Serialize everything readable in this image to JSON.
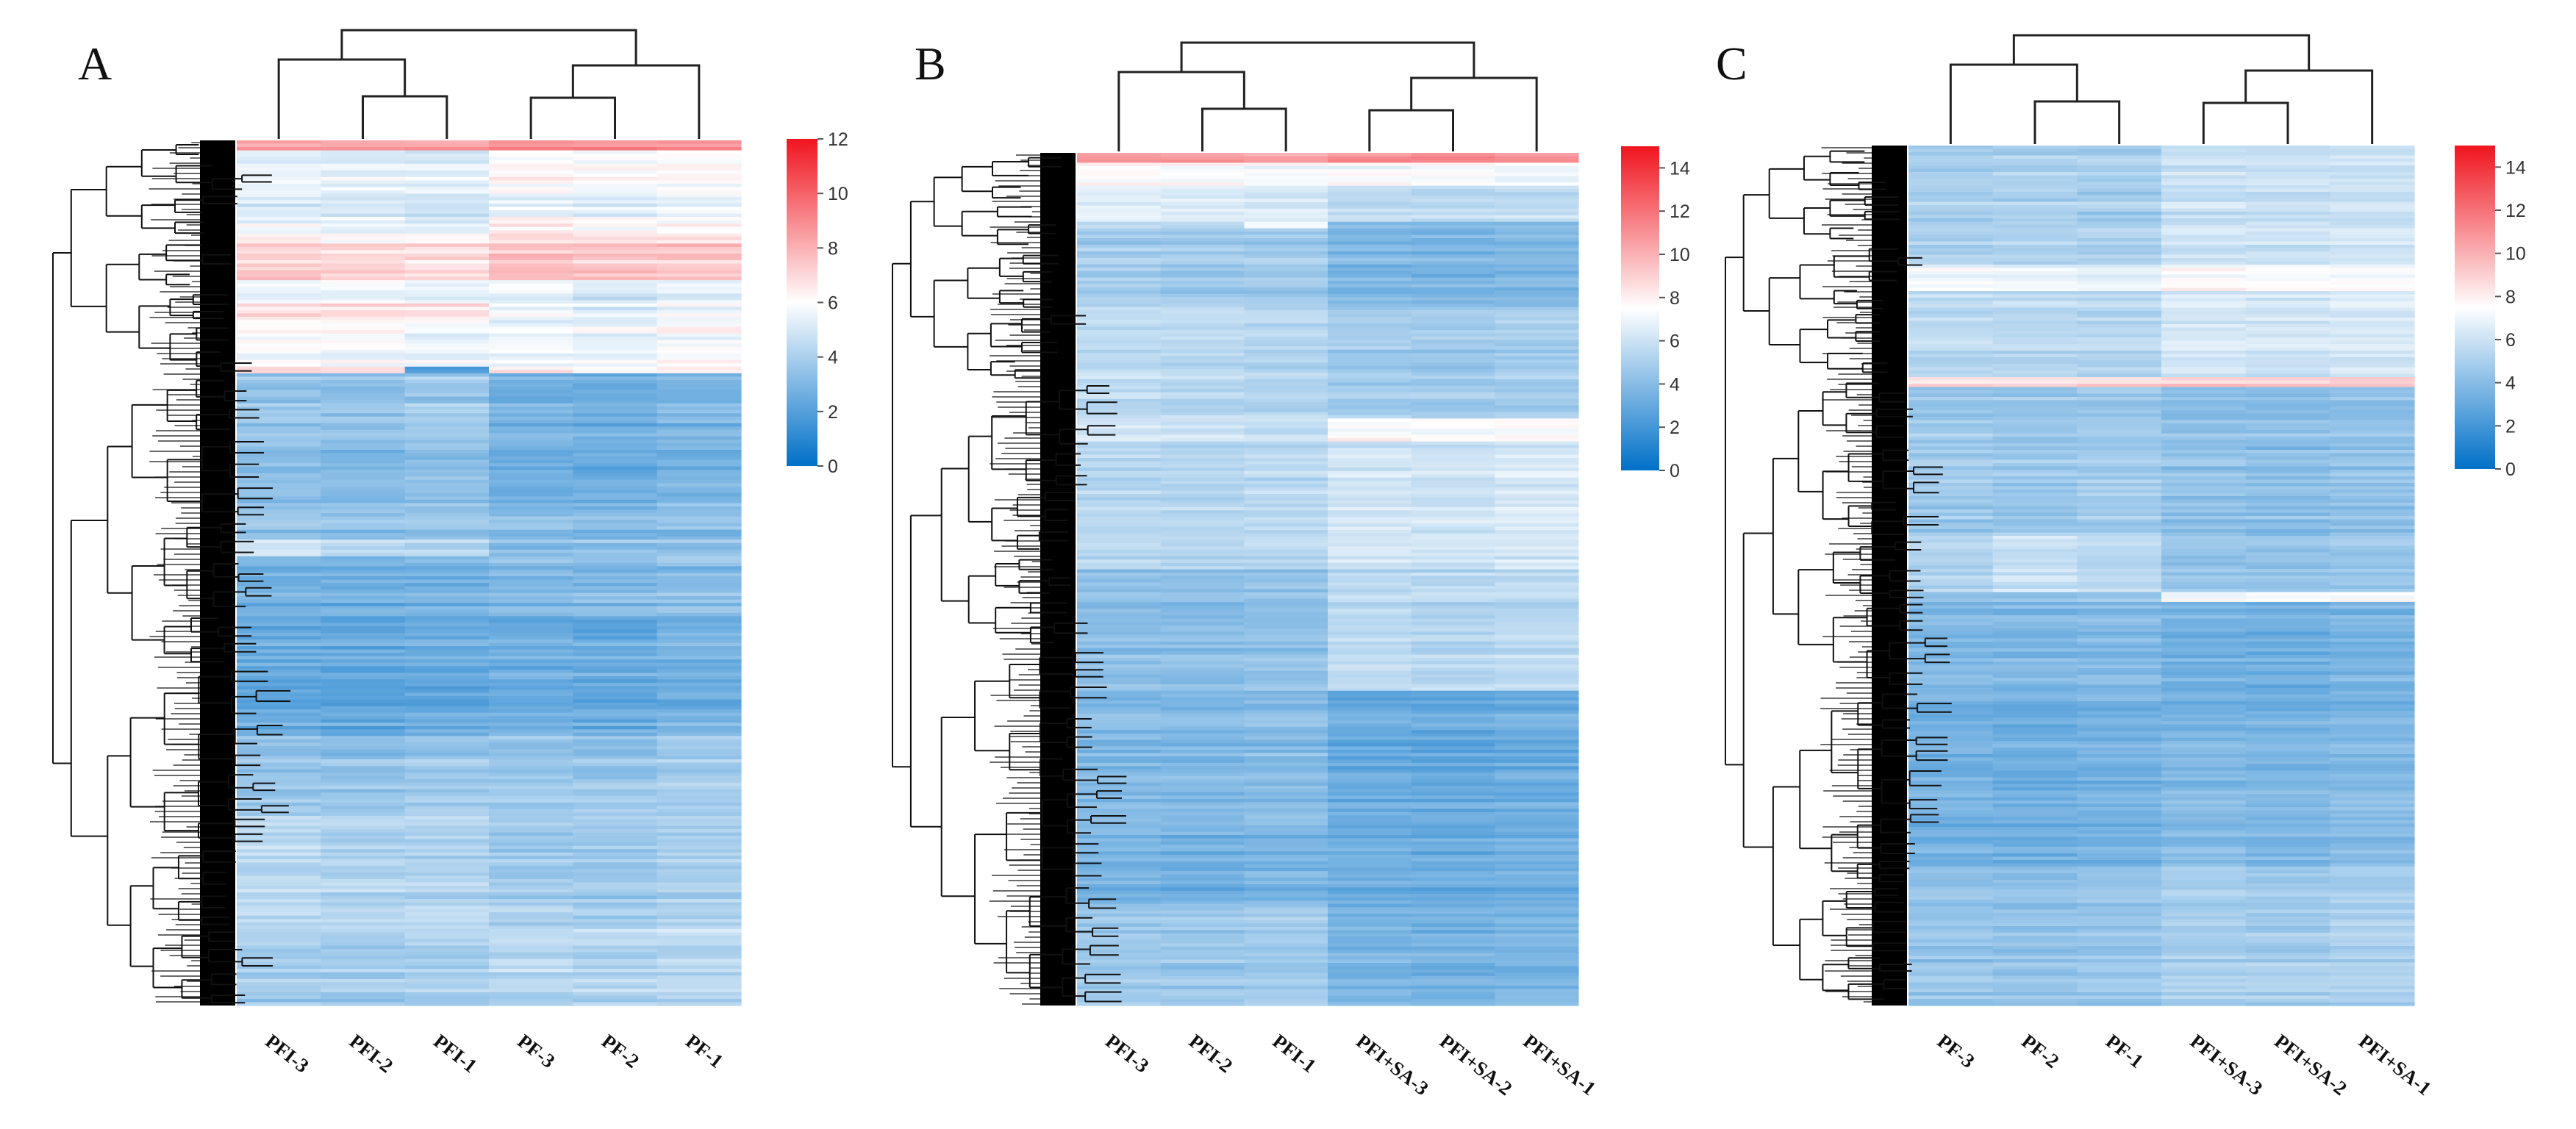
{
  "colors": {
    "low": "#0070c8",
    "mid": "#ffffff",
    "high": "#f0141e"
  },
  "chart_data": [
    {
      "type": "heatmap",
      "panel": "A",
      "title": "",
      "columns": [
        "PFI-3",
        "PFI-2",
        "PFI-1",
        "PF-3",
        "PF-2",
        "PF-1"
      ],
      "colorbar": {
        "range": [
          0,
          12
        ],
        "ticks": [
          0,
          2,
          4,
          6,
          8,
          10,
          12
        ]
      },
      "row_clustering": true,
      "column_clustering": true,
      "row_profile": [
        {
          "start": 0.0,
          "end": 0.01,
          "values": [
            8.5,
            8.5,
            8.5,
            9,
            9,
            9
          ]
        },
        {
          "start": 0.01,
          "end": 0.05,
          "values": [
            5.6,
            5.5,
            5.4,
            6.2,
            6.2,
            6.3
          ]
        },
        {
          "start": 0.05,
          "end": 0.09,
          "values": [
            5.2,
            5.1,
            5.0,
            5.6,
            5.4,
            5.5
          ]
        },
        {
          "start": 0.09,
          "end": 0.12,
          "values": [
            5.8,
            5.6,
            5.4,
            6.4,
            6.2,
            6.3
          ]
        },
        {
          "start": 0.12,
          "end": 0.16,
          "values": [
            7.2,
            7.0,
            6.8,
            7.5,
            7.3,
            7.4
          ]
        },
        {
          "start": 0.16,
          "end": 0.19,
          "values": [
            5.5,
            5.6,
            5.4,
            5.4,
            5.1,
            5.3
          ]
        },
        {
          "start": 0.19,
          "end": 0.21,
          "values": [
            6.6,
            6.7,
            6.5,
            5.5,
            5.2,
            5.6
          ]
        },
        {
          "start": 0.21,
          "end": 0.26,
          "values": [
            6.1,
            6.0,
            5.8,
            5.9,
            5.7,
            6.0
          ]
        },
        {
          "start": 0.26,
          "end": 0.27,
          "values": [
            7.0,
            6.9,
            2.0,
            6.4,
            6.2,
            6.4
          ]
        },
        {
          "start": 0.27,
          "end": 0.34,
          "values": [
            3.6,
            3.5,
            3.8,
            2.8,
            2.7,
            2.9
          ]
        },
        {
          "start": 0.34,
          "end": 0.41,
          "values": [
            3.3,
            3.2,
            3.4,
            2.7,
            2.6,
            2.8
          ]
        },
        {
          "start": 0.41,
          "end": 0.46,
          "values": [
            3.4,
            3.3,
            3.5,
            3.0,
            2.9,
            3.1
          ]
        },
        {
          "start": 0.46,
          "end": 0.48,
          "values": [
            5.0,
            4.6,
            4.4,
            3.4,
            3.3,
            3.5
          ]
        },
        {
          "start": 0.48,
          "end": 0.55,
          "values": [
            2.6,
            2.5,
            2.6,
            3.0,
            2.9,
            3.2
          ]
        },
        {
          "start": 0.55,
          "end": 0.69,
          "values": [
            2.5,
            2.4,
            2.5,
            2.6,
            2.5,
            2.8
          ]
        },
        {
          "start": 0.69,
          "end": 0.78,
          "values": [
            3.5,
            3.4,
            3.6,
            3.6,
            3.5,
            3.8
          ]
        },
        {
          "start": 0.78,
          "end": 0.91,
          "values": [
            4.4,
            4.2,
            4.3,
            3.8,
            3.7,
            4.0
          ]
        },
        {
          "start": 0.91,
          "end": 1.0,
          "values": [
            3.8,
            3.7,
            3.9,
            4.2,
            4.1,
            4.3
          ]
        }
      ]
    },
    {
      "type": "heatmap",
      "panel": "B",
      "title": "",
      "columns": [
        "PFI-3",
        "PFI-2",
        "PFI-1",
        "PFI+SA-3",
        "PFI+SA-2",
        "PFI+SA-1"
      ],
      "colorbar": {
        "range": [
          0,
          15
        ],
        "ticks": [
          0,
          2,
          4,
          6,
          8,
          10,
          12,
          14
        ]
      },
      "row_clustering": true,
      "column_clustering": true,
      "row_profile": [
        {
          "start": 0.0,
          "end": 0.01,
          "values": [
            10.5,
            10.5,
            10.5,
            11,
            11,
            11
          ]
        },
        {
          "start": 0.01,
          "end": 0.04,
          "values": [
            7.6,
            7.5,
            7.3,
            7.4,
            7.3,
            7.2
          ]
        },
        {
          "start": 0.04,
          "end": 0.08,
          "values": [
            6.8,
            6.6,
            6.5,
            5.8,
            5.7,
            5.9
          ]
        },
        {
          "start": 0.08,
          "end": 0.09,
          "values": [
            6.2,
            6.0,
            7.8,
            4.4,
            4.3,
            4.5
          ]
        },
        {
          "start": 0.09,
          "end": 0.18,
          "values": [
            4.8,
            4.6,
            4.7,
            3.7,
            3.6,
            3.8
          ]
        },
        {
          "start": 0.18,
          "end": 0.31,
          "values": [
            5.6,
            5.5,
            5.3,
            4.8,
            4.7,
            4.9
          ]
        },
        {
          "start": 0.31,
          "end": 0.34,
          "values": [
            6.2,
            6.0,
            5.8,
            7.6,
            7.5,
            7.6
          ]
        },
        {
          "start": 0.34,
          "end": 0.49,
          "values": [
            5.4,
            5.3,
            5.5,
            6.2,
            6.1,
            6.3
          ]
        },
        {
          "start": 0.49,
          "end": 0.63,
          "values": [
            4.2,
            4.1,
            4.3,
            5.6,
            5.4,
            5.6
          ]
        },
        {
          "start": 0.63,
          "end": 0.8,
          "values": [
            3.9,
            3.8,
            4.0,
            3.1,
            3.0,
            3.2
          ]
        },
        {
          "start": 0.8,
          "end": 0.88,
          "values": [
            3.4,
            3.3,
            3.5,
            3.2,
            3.1,
            3.3
          ]
        },
        {
          "start": 0.88,
          "end": 1.0,
          "values": [
            4.6,
            4.5,
            4.7,
            3.5,
            3.4,
            3.6
          ]
        }
      ]
    },
    {
      "type": "heatmap",
      "panel": "C",
      "title": "",
      "columns": [
        "PF-3",
        "PF-2",
        "PF-1",
        "PFI+SA-3",
        "PFI+SA-2",
        "PFI+SA-1"
      ],
      "colorbar": {
        "range": [
          0,
          15
        ],
        "ticks": [
          0,
          2,
          4,
          6,
          8,
          10,
          12,
          14
        ]
      },
      "row_clustering": true,
      "column_clustering": true,
      "row_profile": [
        {
          "start": 0.0,
          "end": 0.14,
          "values": [
            5.0,
            5.1,
            4.9,
            6.0,
            5.9,
            6.0
          ]
        },
        {
          "start": 0.14,
          "end": 0.17,
          "values": [
            7.4,
            7.2,
            7.0,
            7.6,
            7.5,
            7.5
          ]
        },
        {
          "start": 0.17,
          "end": 0.27,
          "values": [
            5.6,
            5.5,
            5.4,
            6.3,
            6.2,
            6.4
          ]
        },
        {
          "start": 0.27,
          "end": 0.28,
          "values": [
            8.8,
            8.8,
            8.8,
            9.2,
            9.2,
            9.2
          ]
        },
        {
          "start": 0.28,
          "end": 0.45,
          "values": [
            4.6,
            4.5,
            4.7,
            4.2,
            4.1,
            4.3
          ]
        },
        {
          "start": 0.45,
          "end": 0.52,
          "values": [
            5.2,
            5.8,
            5.4,
            4.4,
            4.3,
            4.5
          ]
        },
        {
          "start": 0.52,
          "end": 0.53,
          "values": [
            4.8,
            4.7,
            4.9,
            7.6,
            7.5,
            7.6
          ]
        },
        {
          "start": 0.53,
          "end": 0.65,
          "values": [
            3.8,
            3.7,
            3.9,
            3.4,
            3.3,
            3.5
          ]
        },
        {
          "start": 0.65,
          "end": 0.84,
          "values": [
            3.4,
            3.3,
            3.5,
            3.8,
            3.7,
            3.9
          ]
        },
        {
          "start": 0.84,
          "end": 1.0,
          "values": [
            4.4,
            4.3,
            4.5,
            4.9,
            4.8,
            5.0
          ]
        }
      ]
    }
  ]
}
